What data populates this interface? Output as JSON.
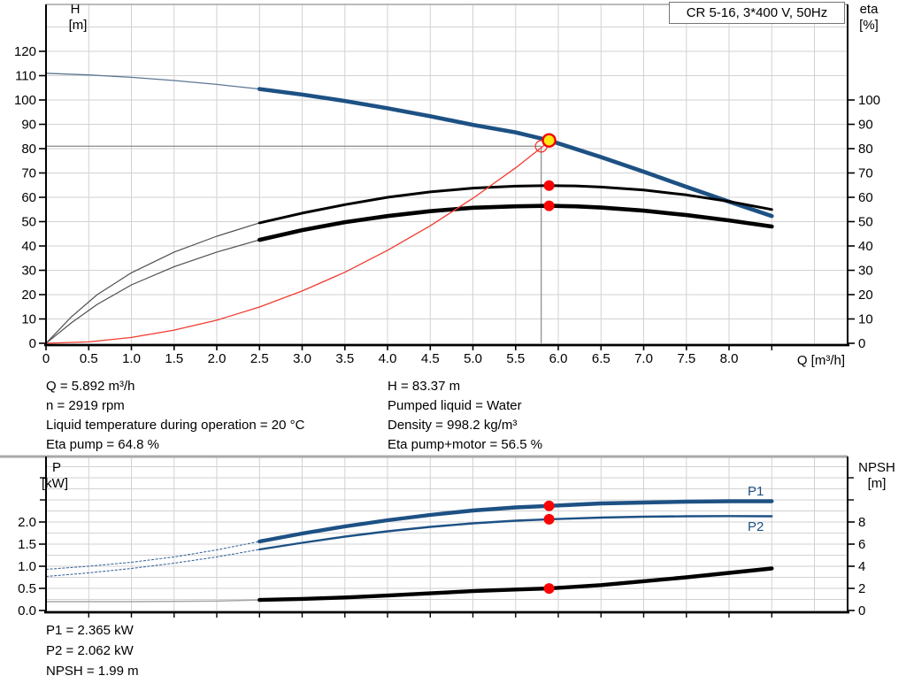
{
  "title_box": {
    "label": "CR 5-16, 3*400 V, 50Hz"
  },
  "colors": {
    "curve_blue": "#1d5184",
    "thin_blue": "#5b7693",
    "black": "#000000",
    "red": "#fc0303",
    "system_red": "#f23b30",
    "duty_fill_yellow": "#ffe713",
    "duty_ring_red": "#f40000",
    "grid": "#d2d2d2",
    "crosshair": "#8a8a8a",
    "frame": "#a3a3a3"
  },
  "curve_labels": {
    "p1": "P1",
    "p2": "P2"
  },
  "upper_info": {
    "left": [
      "Q = 5.892 m³/h",
      "n = 2919 rpm",
      "Liquid temperature during operation = 20 °C",
      "Eta pump = 64.8 %"
    ],
    "right": [
      "H = 83.37 m",
      "Pumped liquid = Water",
      "Density = 998.2 kg/m³",
      "Eta pump+motor = 56.5 %"
    ]
  },
  "lower_info": {
    "lines": [
      "P1 = 2.365 kW",
      "P2 = 2.062 kW",
      "NPSH = 1.99 m"
    ]
  },
  "chart_data": [
    {
      "type": "line",
      "title": "CR 5-16, 3*400 V, 50Hz",
      "legend_position": "none",
      "x_axis": {
        "label": "Q [m³/h]",
        "range": [
          0,
          9.4
        ],
        "ticks": [
          0,
          0.5,
          1,
          1.5,
          2,
          2.5,
          3,
          3.5,
          4,
          4.5,
          5,
          5.5,
          6,
          6.5,
          7,
          7.5,
          8
        ],
        "tick_labels": [
          "0",
          "0.5",
          "1.0",
          "1.5",
          "2.0",
          "2.5",
          "3.0",
          "3.5",
          "4.0",
          "4.5",
          "5.0",
          "5.5",
          "6.0",
          "6.5",
          "7.0",
          "7.5",
          "8.0"
        ],
        "minor_ticks": [
          8.5
        ],
        "grid": true
      },
      "y_left": {
        "label": "H",
        "unit": "[m]",
        "range": [
          0,
          139
        ],
        "ticks": [
          0,
          10,
          20,
          30,
          40,
          50,
          60,
          70,
          80,
          90,
          100,
          110,
          120
        ],
        "tick_labels": [
          "0",
          "10",
          "20",
          "30",
          "40",
          "50",
          "60",
          "70",
          "80",
          "90",
          "100",
          "110",
          "120"
        ],
        "grid": true
      },
      "y_right": {
        "label": "eta",
        "unit": "[%]",
        "range": [
          0,
          100
        ],
        "ticks": [
          0,
          10,
          20,
          30,
          40,
          50,
          60,
          70,
          80,
          90,
          100
        ],
        "tick_labels": [
          "0",
          "10",
          "20",
          "30",
          "40",
          "50",
          "60",
          "70",
          "80",
          "90",
          "100"
        ]
      },
      "series": [
        {
          "id": "head-curve",
          "name": "H pump curve",
          "axis": "left",
          "color": "#1d5184",
          "width": 4.6,
          "thin_to": 2.5,
          "thin_color": "#5b7693",
          "thin_width": 1.3,
          "points": [
            [
              0,
              111
            ],
            [
              0.5,
              110.3
            ],
            [
              1,
              109.3
            ],
            [
              1.5,
              108
            ],
            [
              2,
              106.4
            ],
            [
              2.5,
              104.5
            ],
            [
              3,
              102.2
            ],
            [
              3.5,
              99.6
            ],
            [
              4,
              96.6
            ],
            [
              4.5,
              93.3
            ],
            [
              5,
              89.8
            ],
            [
              5.5,
              86.7
            ],
            [
              5.892,
              83.37
            ],
            [
              6.5,
              76.5
            ],
            [
              7,
              70.5
            ],
            [
              7.5,
              64.3
            ],
            [
              8,
              58.2
            ],
            [
              8.5,
              52.3
            ]
          ]
        },
        {
          "id": "eta-pump-curve",
          "name": "Eta pump",
          "axis": "right",
          "color": "#000000",
          "width": 3,
          "thin_to": 2.5,
          "thin_color": "#4f4f4f",
          "thin_width": 1.2,
          "points": [
            [
              0,
              0
            ],
            [
              0.3,
              11
            ],
            [
              0.6,
              20
            ],
            [
              1,
              29
            ],
            [
              1.5,
              37.5
            ],
            [
              2,
              44
            ],
            [
              2.5,
              49.5
            ],
            [
              3,
              53.5
            ],
            [
              3.5,
              57
            ],
            [
              4,
              60
            ],
            [
              4.5,
              62.2
            ],
            [
              5,
              63.8
            ],
            [
              5.5,
              64.6
            ],
            [
              5.892,
              64.8
            ],
            [
              6.2,
              64.7
            ],
            [
              6.5,
              64.2
            ],
            [
              7,
              63
            ],
            [
              7.5,
              61
            ],
            [
              8,
              58.3
            ],
            [
              8.5,
              55
            ]
          ]
        },
        {
          "id": "eta-pump-motor-curve",
          "name": "Eta pump+motor",
          "axis": "right",
          "color": "#000000",
          "width": 4.6,
          "thin_to": 2.5,
          "thin_color": "#4f4f4f",
          "thin_width": 1.2,
          "points": [
            [
              0,
              0
            ],
            [
              0.3,
              8.5
            ],
            [
              0.6,
              16
            ],
            [
              1,
              24
            ],
            [
              1.5,
              31.5
            ],
            [
              2,
              37.5
            ],
            [
              2.5,
              42.5
            ],
            [
              3,
              46.5
            ],
            [
              3.5,
              49.8
            ],
            [
              4,
              52.3
            ],
            [
              4.5,
              54.3
            ],
            [
              5,
              55.7
            ],
            [
              5.5,
              56.3
            ],
            [
              5.892,
              56.5
            ],
            [
              6.2,
              56.3
            ],
            [
              6.5,
              55.8
            ],
            [
              7,
              54.5
            ],
            [
              7.5,
              52.7
            ],
            [
              8,
              50.5
            ],
            [
              8.5,
              48
            ]
          ]
        },
        {
          "id": "system-curve",
          "name": "System curve",
          "axis": "left",
          "color": "#f23b30",
          "width": 1.3,
          "points": [
            [
              0,
              0
            ],
            [
              0.5,
              0.6
            ],
            [
              1,
              2.4
            ],
            [
              1.5,
              5.4
            ],
            [
              2,
              9.5
            ],
            [
              2.5,
              14.9
            ],
            [
              3,
              21.5
            ],
            [
              3.5,
              29.2
            ],
            [
              4,
              38.2
            ],
            [
              4.5,
              48.3
            ],
            [
              5,
              59.6
            ],
            [
              5.5,
              72.1
            ],
            [
              5.9,
              83.2
            ]
          ]
        }
      ],
      "crosshair": {
        "q": 5.8,
        "v": 81
      },
      "markers": [
        {
          "id": "requested-duty-circle",
          "type": "open",
          "q": 5.8,
          "v": 81,
          "axis": "left",
          "color": "#f23b30"
        },
        {
          "id": "duty-point",
          "type": "duty",
          "q": 5.892,
          "v": 83.37,
          "axis": "left",
          "fill": "#ffe713",
          "stroke": "#f40000"
        },
        {
          "id": "eta-pump-duty-dot",
          "type": "dot",
          "q": 5.892,
          "v": 64.8,
          "axis": "right",
          "color": "#fc0303"
        },
        {
          "id": "eta-pump-motor-duty-dot",
          "type": "dot",
          "q": 5.892,
          "v": 56.5,
          "axis": "right",
          "color": "#fc0303"
        }
      ]
    },
    {
      "type": "line",
      "title": "",
      "legend_position": "inline",
      "x_axis": {
        "label": "",
        "range": [
          0,
          9.4
        ],
        "ticks": [],
        "tick_labels": [],
        "minor_ticks": [
          0.5,
          1,
          1.5,
          2,
          2.5,
          3,
          3.5,
          4,
          4.5,
          5,
          5.5,
          6,
          6.5,
          7,
          7.5,
          8,
          8.5
        ],
        "grid": true
      },
      "y_left": {
        "label": "P",
        "unit": "[kW]",
        "range": [
          0,
          3.46
        ],
        "ticks": [
          0,
          0.5,
          1,
          1.5,
          2
        ],
        "tick_labels": [
          "0.0",
          "0.5",
          "1.0",
          "1.5",
          "2.0"
        ],
        "minor_ticks": [
          2.5,
          3
        ],
        "grid": true
      },
      "y_right": {
        "label": "NPSH",
        "unit": "[m]",
        "range": [
          0,
          13.8
        ],
        "ticks": [
          0,
          2,
          4,
          6,
          8
        ],
        "tick_labels": [
          "0",
          "2",
          "4",
          "6",
          "8"
        ],
        "minor_ticks": [
          10,
          12
        ]
      },
      "series": [
        {
          "id": "p1-curve",
          "name": "P1",
          "axis": "left",
          "color": "#1d5184",
          "width": 4.4,
          "thin_to": 2.5,
          "thin_color": "#2e5c93",
          "thin_width": 1,
          "thin_dash": "3,1.6",
          "points": [
            [
              0,
              0.93
            ],
            [
              0.5,
              1.0
            ],
            [
              1,
              1.09
            ],
            [
              1.5,
              1.21
            ],
            [
              2,
              1.37
            ],
            [
              2.5,
              1.56
            ],
            [
              3,
              1.74
            ],
            [
              3.5,
              1.9
            ],
            [
              4,
              2.04
            ],
            [
              4.5,
              2.16
            ],
            [
              5,
              2.26
            ],
            [
              5.5,
              2.33
            ],
            [
              5.892,
              2.365
            ],
            [
              6.5,
              2.42
            ],
            [
              7,
              2.44
            ],
            [
              7.5,
              2.46
            ],
            [
              8,
              2.47
            ],
            [
              8.5,
              2.47
            ]
          ]
        },
        {
          "id": "p2-curve",
          "name": "P2",
          "axis": "left",
          "color": "#1d5184",
          "width": 2.4,
          "thin_to": 2.5,
          "thin_color": "#2e5c93",
          "thin_width": 1,
          "thin_dash": "3,1.6",
          "points": [
            [
              0,
              0.77
            ],
            [
              0.5,
              0.85
            ],
            [
              1,
              0.95
            ],
            [
              1.5,
              1.07
            ],
            [
              2,
              1.21
            ],
            [
              2.5,
              1.38
            ],
            [
              3,
              1.53
            ],
            [
              3.5,
              1.67
            ],
            [
              4,
              1.79
            ],
            [
              4.5,
              1.89
            ],
            [
              5,
              1.97
            ],
            [
              5.5,
              2.03
            ],
            [
              5.892,
              2.062
            ],
            [
              6.5,
              2.1
            ],
            [
              7,
              2.12
            ],
            [
              7.5,
              2.13
            ],
            [
              8,
              2.135
            ],
            [
              8.5,
              2.13
            ]
          ]
        },
        {
          "id": "npsh-curve",
          "name": "NPSH",
          "axis": "right",
          "color": "#000000",
          "width": 4.4,
          "thin_to": 2.5,
          "thin_color": "#a6a6a6",
          "thin_width": 1.5,
          "points": [
            [
              0,
              0.8
            ],
            [
              1,
              0.8
            ],
            [
              2,
              0.85
            ],
            [
              2.5,
              0.95
            ],
            [
              3,
              1.05
            ],
            [
              3.5,
              1.18
            ],
            [
              4,
              1.35
            ],
            [
              4.5,
              1.55
            ],
            [
              5,
              1.75
            ],
            [
              5.5,
              1.9
            ],
            [
              5.892,
              1.99
            ],
            [
              6.5,
              2.3
            ],
            [
              7,
              2.65
            ],
            [
              7.5,
              3.0
            ],
            [
              8,
              3.4
            ],
            [
              8.5,
              3.8
            ]
          ]
        }
      ],
      "markers": [
        {
          "id": "p1-duty-dot",
          "type": "dot",
          "q": 5.892,
          "v": 2.365,
          "axis": "left",
          "color": "#fc0303"
        },
        {
          "id": "p2-duty-dot",
          "type": "dot",
          "q": 5.892,
          "v": 2.062,
          "axis": "left",
          "color": "#fc0303"
        },
        {
          "id": "npsh-duty-dot",
          "type": "dot",
          "q": 5.892,
          "v": 1.99,
          "axis": "right",
          "color": "#fc0303"
        }
      ]
    }
  ]
}
